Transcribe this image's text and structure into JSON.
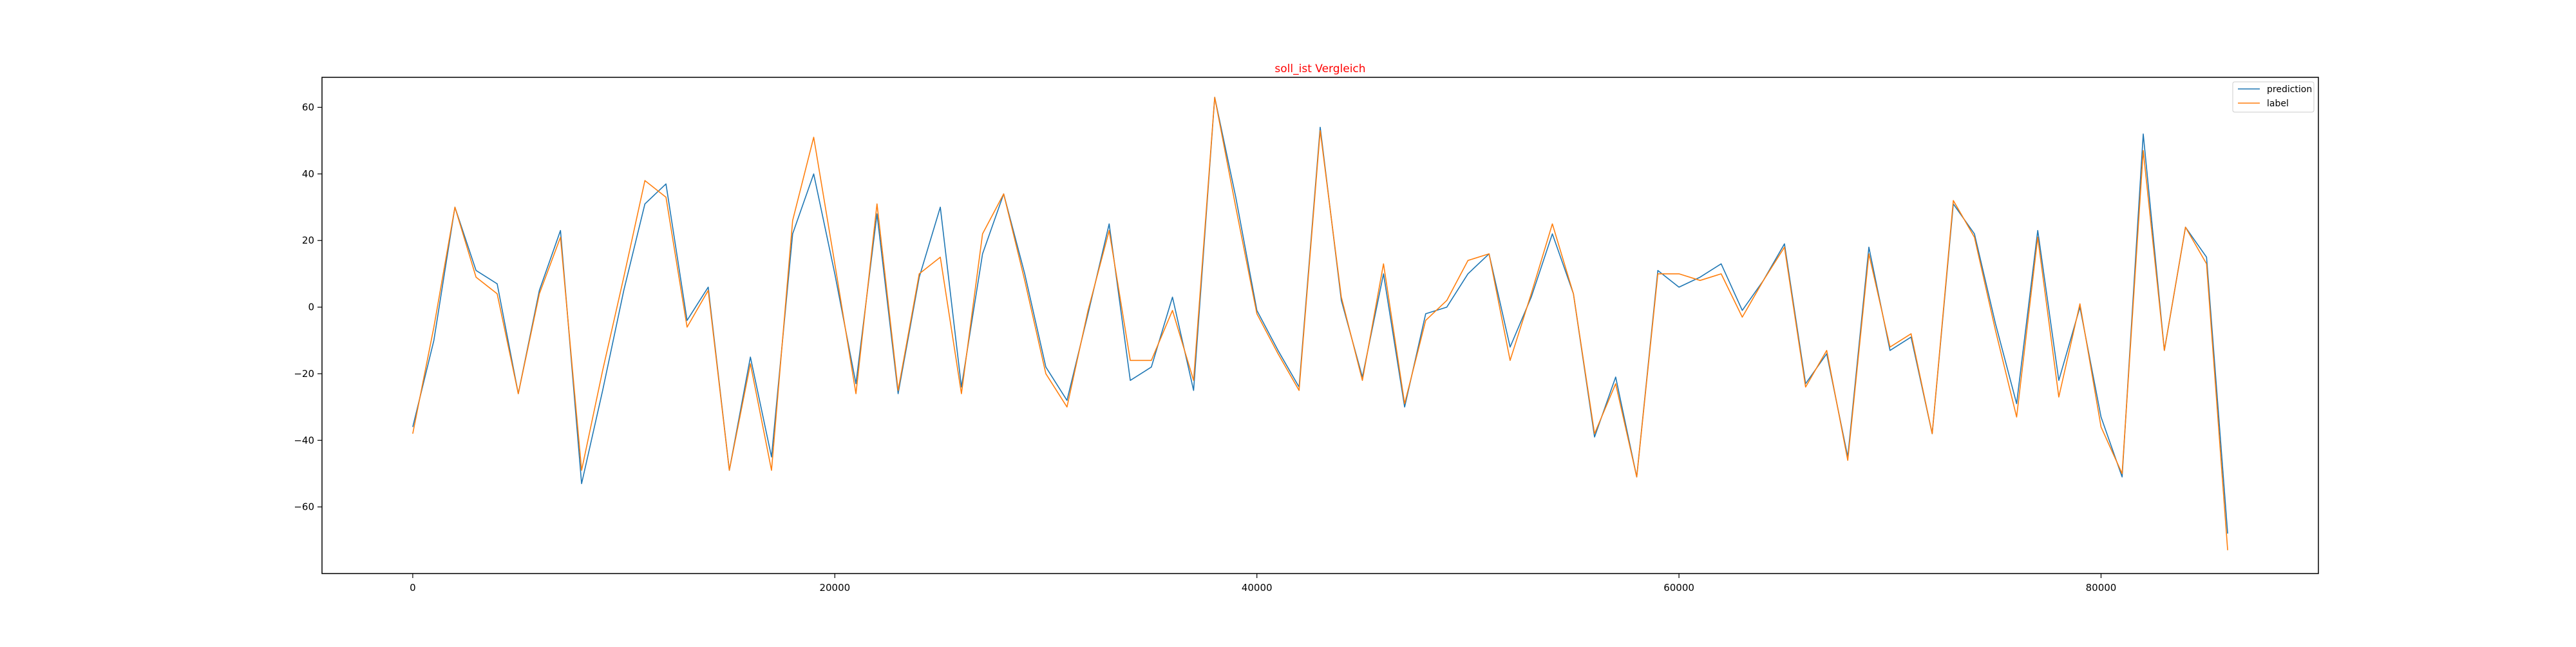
{
  "chart_data": {
    "type": "line",
    "title": "soll_ist Vergleich",
    "title_color": "#ff0000",
    "xlim": [
      -4300,
      90300
    ],
    "ylim": [
      -80,
      69
    ],
    "xticks": [
      0,
      20000,
      40000,
      60000,
      80000
    ],
    "yticks": [
      -60,
      -40,
      -20,
      0,
      20,
      40,
      60
    ],
    "xtick_labels": [
      "0",
      "20000",
      "40000",
      "60000",
      "80000"
    ],
    "ytick_labels": [
      "−60",
      "−40",
      "−20",
      "0",
      "20",
      "40",
      "60"
    ],
    "grid": false,
    "legend_position": "top-right",
    "x": [
      0,
      1000,
      2000,
      3000,
      4000,
      5000,
      6000,
      7000,
      8000,
      9000,
      10000,
      11000,
      12000,
      13000,
      14000,
      15000,
      16000,
      17000,
      18000,
      19000,
      20000,
      21000,
      22000,
      23000,
      24000,
      25000,
      26000,
      27000,
      28000,
      29000,
      30000,
      31000,
      32000,
      33000,
      34000,
      35000,
      36000,
      37000,
      38000,
      39000,
      40000,
      41000,
      42000,
      43000,
      44000,
      45000,
      46000,
      47000,
      48000,
      49000,
      50000,
      51000,
      52000,
      53000,
      54000,
      55000,
      56000,
      57000,
      58000,
      59000,
      60000,
      61000,
      62000,
      63000,
      64000,
      65000,
      66000,
      67000,
      68000,
      69000,
      70000,
      71000,
      72000,
      73000,
      74000,
      75000,
      76000,
      77000,
      78000,
      79000,
      80000,
      81000,
      82000,
      83000,
      84000,
      85000,
      86000
    ],
    "series": [
      {
        "name": "prediction",
        "color": "#1f77b4",
        "values": [
          -36,
          -10,
          30,
          11,
          7,
          -26,
          5,
          23,
          -53,
          -25,
          5,
          31,
          37,
          -4,
          6,
          -49,
          -15,
          -45,
          22,
          40,
          10,
          -23,
          28,
          -26,
          9,
          30,
          -24,
          16,
          34,
          10,
          -18,
          -28,
          -2,
          25,
          -22,
          -18,
          3,
          -25,
          63,
          33,
          -1,
          -13,
          -24,
          54,
          2,
          -21,
          10,
          -30,
          -2,
          0,
          10,
          16,
          -12,
          3,
          22,
          4,
          -39,
          -21,
          -51,
          11,
          6,
          9,
          13,
          -1,
          8,
          19,
          -23,
          -14,
          -45,
          18,
          -13,
          -9,
          -38,
          31,
          22,
          -5,
          -29,
          23,
          -22,
          0,
          -33,
          -51,
          52,
          -13,
          24,
          15,
          -68
        ]
      },
      {
        "name": "label",
        "color": "#ff7f0e",
        "values": [
          -38,
          -6,
          30,
          9,
          4,
          -26,
          4,
          21,
          -49,
          -19,
          9,
          38,
          33,
          -6,
          5,
          -49,
          -17,
          -49,
          26,
          51,
          13,
          -26,
          31,
          -25,
          10,
          15,
          -26,
          22,
          34,
          8,
          -20,
          -30,
          -1,
          23,
          -16,
          -16,
          -1,
          -22,
          63,
          30,
          -2,
          -14,
          -25,
          53,
          3,
          -22,
          13,
          -29,
          -4,
          2,
          14,
          16,
          -16,
          4,
          25,
          4,
          -38,
          -23,
          -51,
          10,
          10,
          8,
          10,
          -3,
          8,
          18,
          -24,
          -13,
          -46,
          16,
          -12,
          -8,
          -38,
          32,
          21,
          -7,
          -33,
          21,
          -27,
          1,
          -36,
          -50,
          47,
          -13,
          24,
          13,
          -73
        ]
      }
    ]
  }
}
